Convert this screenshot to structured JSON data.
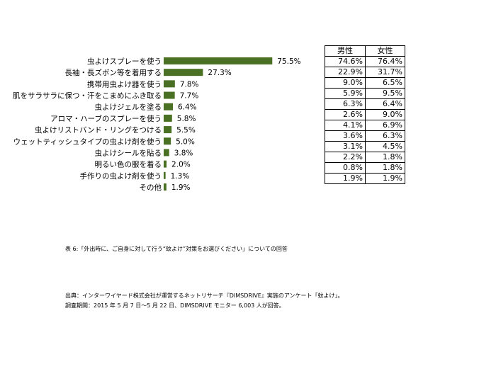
{
  "chart_data": {
    "type": "bar",
    "orientation": "horizontal",
    "categories": [
      "虫よけスプレーを使う",
      "長袖・長ズボン等を着用する",
      "携帯用虫よけ器を使う",
      "肌をサラサラに保つ・汗をこまめにふき取る",
      "虫よけジェルを塗る",
      "アロマ・ハーブのスプレーを使う",
      "虫よけリストバンド・リングをつける",
      "ウェットティッシュタイプの虫よけ剤を使う",
      "虫よけシールを貼る",
      "明るい色の服を着る",
      "手作りの虫よけ剤を使う",
      "その他"
    ],
    "values": [
      75.5,
      27.3,
      7.8,
      7.7,
      6.4,
      5.8,
      5.5,
      5.0,
      3.8,
      2.0,
      1.3,
      1.9
    ],
    "value_labels": [
      "75.5%",
      "27.3%",
      "7.8%",
      "7.7%",
      "6.4%",
      "5.8%",
      "5.5%",
      "5.0%",
      "3.8%",
      "2.0%",
      "1.3%",
      "1.9%"
    ],
    "bar_color": "#4a7023",
    "grid": false,
    "legend": "none"
  },
  "table": {
    "headers": [
      "男性",
      "女性"
    ],
    "rows": [
      [
        "74.6%",
        "76.4%"
      ],
      [
        "22.9%",
        "31.7%"
      ],
      [
        "9.0%",
        "6.5%"
      ],
      [
        "5.9%",
        "9.5%"
      ],
      [
        "6.3%",
        "6.4%"
      ],
      [
        "2.6%",
        "9.0%"
      ],
      [
        "4.1%",
        "6.9%"
      ],
      [
        "3.6%",
        "6.3%"
      ],
      [
        "3.1%",
        "4.5%"
      ],
      [
        "2.2%",
        "1.8%"
      ],
      [
        "0.8%",
        "1.8%"
      ],
      [
        "1.9%",
        "1.9%"
      ]
    ]
  },
  "captions": {
    "table_caption": "表 6:「外出時に、ご自身に対して行う“蚊よけ”対策をお選びください」についての回答",
    "source": "出典：インターワイヤード株式会社が運営するネットリサーチ『DIMSDRIVE』実施のアンケート「蚊よけ」。",
    "period": "調査期間：2015 年 5 月 7 日～5 月 22 日、DIMSDRIVE モニター 6,003 人が回答。"
  }
}
